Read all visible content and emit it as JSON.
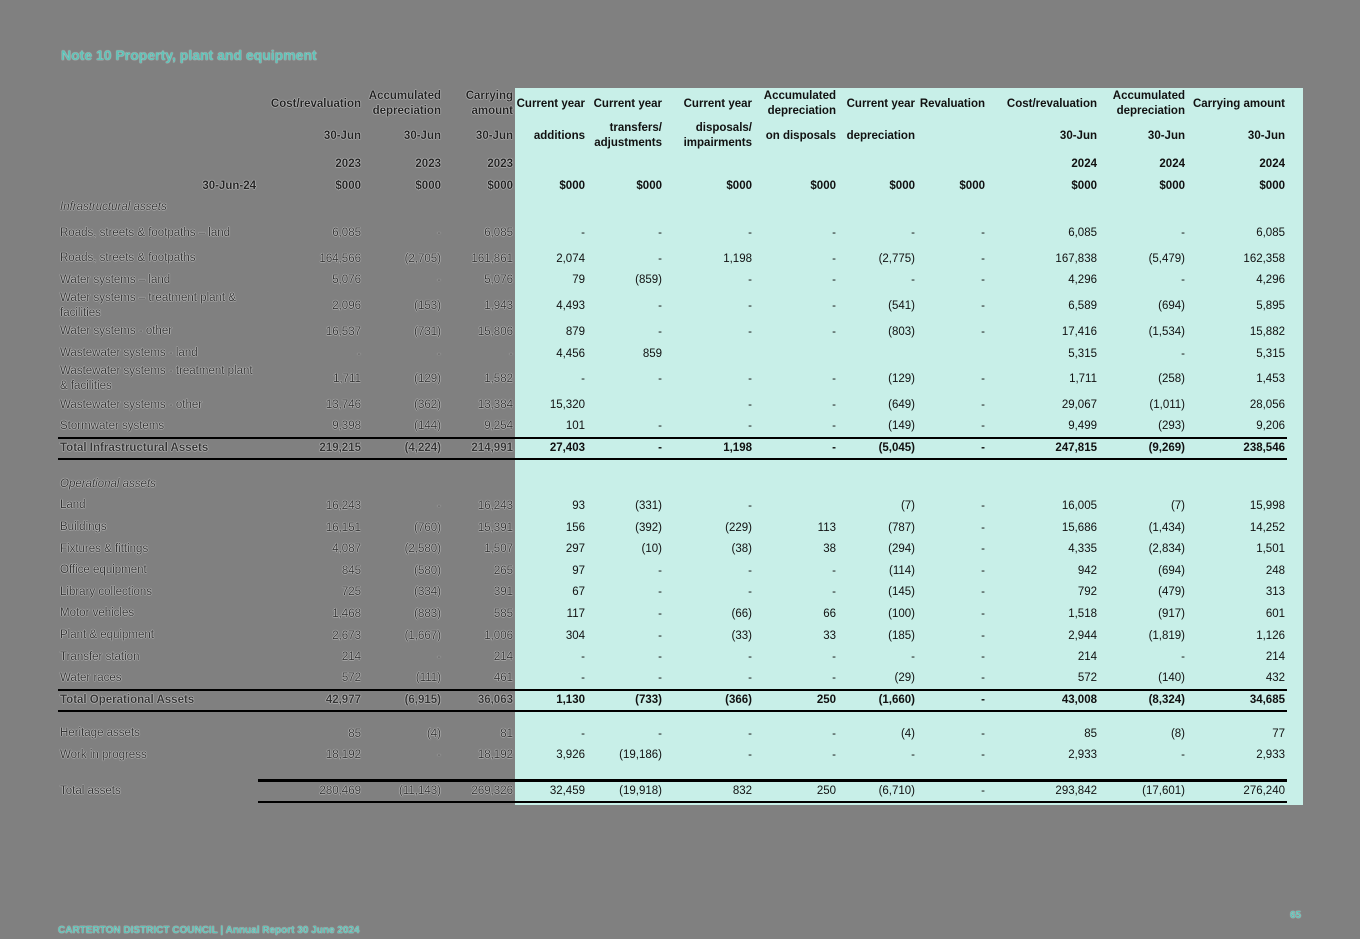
{
  "title": "Note 10 Property, plant and equipment",
  "header": {
    "row_label": "30-Jun-24",
    "columns": [
      {
        "line1": "Cost/revaluation",
        "line2": "30-Jun",
        "line3": "2023",
        "unit": "$000"
      },
      {
        "line1": "Accumulated depreciation",
        "line2": "30-Jun",
        "line3": "2023",
        "unit": "$000"
      },
      {
        "line1": "Carrying amount",
        "line2": "30-Jun",
        "line3": "2023",
        "unit": "$000"
      },
      {
        "line1": "Current year",
        "line2": "additions",
        "line3": "",
        "unit": "$000"
      },
      {
        "line1": "Current year",
        "line2": "transfers/ adjustments",
        "line3": "",
        "unit": "$000"
      },
      {
        "line1": "Current year",
        "line2": "disposals/ impairments",
        "line3": "",
        "unit": "$000"
      },
      {
        "line1": "Accumulated depreciation",
        "line2": "on disposals",
        "line3": "",
        "unit": "$000"
      },
      {
        "line1": "Current year",
        "line2": "depreciation",
        "line3": "",
        "unit": "$000"
      },
      {
        "line1": "Revaluation",
        "line2": "",
        "line3": "",
        "unit": "$000"
      },
      {
        "line1": "Cost/revaluation",
        "line2": "30-Jun",
        "line3": "2024",
        "unit": "$000"
      },
      {
        "line1": "Accumulated depreciation",
        "line2": "30-Jun",
        "line3": "2024",
        "unit": "$000"
      },
      {
        "line1": "Carrying amount",
        "line2": "30-Jun",
        "line3": "2024",
        "unit": "$000"
      }
    ]
  },
  "sections": {
    "infrastructural": {
      "heading": "Infrastructural assets",
      "rows": [
        {
          "label": "Roads, streets & footpaths – land",
          "v": [
            "6,085",
            "-",
            "6,085",
            "-",
            "-",
            "-",
            "-",
            "-",
            "-",
            "6,085",
            "-",
            "6,085"
          ]
        },
        {
          "label": "Roads, streets & footpaths",
          "v": [
            "164,566",
            "(2,705)",
            "161,861",
            "2,074",
            "-",
            "1,198",
            "-",
            "(2,775)",
            "-",
            "167,838",
            "(5,479)",
            "162,358"
          ]
        },
        {
          "label": "Water systems – land",
          "v": [
            "5,076",
            "-",
            "5,076",
            "79",
            "(859)",
            "-",
            "-",
            "-",
            "-",
            "4,296",
            "-",
            "4,296"
          ]
        },
        {
          "label": "Water systems – treatment plant & facilities",
          "v": [
            "2,096",
            "(153)",
            "1,943",
            "4,493",
            "-",
            "-",
            "-",
            "(541)",
            "-",
            "6,589",
            "(694)",
            "5,895"
          ]
        },
        {
          "label": "Water systems - other",
          "v": [
            "16,537",
            "(731)",
            "15,806",
            "879",
            "-",
            "-",
            "-",
            "(803)",
            "-",
            "17,416",
            "(1,534)",
            "15,882"
          ]
        },
        {
          "label": "Wastewater systems - land",
          "v": [
            "-",
            "-",
            "-",
            "4,456",
            "859",
            "",
            "",
            "",
            "",
            "5,315",
            "-",
            "5,315"
          ]
        },
        {
          "label": "Wastewater systems - treatment plant & facilities",
          "v": [
            "1,711",
            "(129)",
            "1,582",
            "-",
            "-",
            "-",
            "-",
            "(129)",
            "-",
            "1,711",
            "(258)",
            "1,453"
          ]
        },
        {
          "label": "Wastewater systems - other",
          "v": [
            "13,746",
            "(362)",
            "13,384",
            "15,320",
            "",
            "-",
            "-",
            "(649)",
            "-",
            "29,067",
            "(1,011)",
            "28,056"
          ]
        },
        {
          "label": "Stormwater systems",
          "v": [
            "9,398",
            "(144)",
            "9,254",
            "101",
            "-",
            "-",
            "-",
            "(149)",
            "-",
            "9,499",
            "(293)",
            "9,206"
          ]
        }
      ],
      "total": {
        "label": "Total Infrastructural Assets",
        "v": [
          "219,215",
          "(4,224)",
          "214,991",
          "27,403",
          "-",
          "1,198",
          "-",
          "(5,045)",
          "-",
          "247,815",
          "(9,269)",
          "238,546"
        ]
      }
    },
    "operational": {
      "heading": "Operational assets",
      "rows": [
        {
          "label": "Land",
          "v": [
            "16,243",
            "-",
            "16,243",
            "93",
            "(331)",
            "-",
            "",
            "(7)",
            "-",
            "16,005",
            "(7)",
            "15,998"
          ]
        },
        {
          "label": "Buildings",
          "v": [
            "16,151",
            "(760)",
            "15,391",
            "156",
            "(392)",
            "(229)",
            "113",
            "(787)",
            "-",
            "15,686",
            "(1,434)",
            "14,252"
          ]
        },
        {
          "label": "Fixtures & fittings",
          "v": [
            "4,087",
            "(2,580)",
            "1,507",
            "297",
            "(10)",
            "(38)",
            "38",
            "(294)",
            "-",
            "4,335",
            "(2,834)",
            "1,501"
          ]
        },
        {
          "label": "Office equipment",
          "v": [
            "845",
            "(580)",
            "265",
            "97",
            "-",
            "-",
            "-",
            "(114)",
            "-",
            "942",
            "(694)",
            "248"
          ]
        },
        {
          "label": "Library collections",
          "v": [
            "725",
            "(334)",
            "391",
            "67",
            "-",
            "-",
            "-",
            "(145)",
            "-",
            "792",
            "(479)",
            "313"
          ]
        },
        {
          "label": "Motor vehicles",
          "v": [
            "1,468",
            "(883)",
            "585",
            "117",
            "-",
            "(66)",
            "66",
            "(100)",
            "-",
            "1,518",
            "(917)",
            "601"
          ]
        },
        {
          "label": "Plant & equipment",
          "v": [
            "2,673",
            "(1,667)",
            "1,006",
            "304",
            "-",
            "(33)",
            "33",
            "(185)",
            "-",
            "2,944",
            "(1,819)",
            "1,126"
          ]
        },
        {
          "label": "Transfer station",
          "v": [
            "214",
            "-",
            "214",
            "-",
            "-",
            "-",
            "-",
            "-",
            "-",
            "214",
            "-",
            "214"
          ]
        },
        {
          "label": "Water races",
          "v": [
            "572",
            "(111)",
            "461",
            "-",
            "-",
            "-",
            "-",
            "(29)",
            "-",
            "572",
            "(140)",
            "432"
          ]
        }
      ],
      "total": {
        "label": "Total Operational Assets",
        "v": [
          "42,977",
          "(6,915)",
          "36,063",
          "1,130",
          "(733)",
          "(366)",
          "250",
          "(1,660)",
          "-",
          "43,008",
          "(8,324)",
          "34,685"
        ]
      }
    },
    "other": {
      "rows": [
        {
          "label": "Heritage assets",
          "v": [
            "85",
            "(4)",
            "81",
            "-",
            "-",
            "-",
            "-",
            "(4)",
            "-",
            "85",
            "(8)",
            "77"
          ]
        },
        {
          "label": "Work in progress",
          "v": [
            "18,192",
            "-",
            "18,192",
            "3,926",
            "(19,186)",
            "-",
            "-",
            "-",
            "-",
            "2,933",
            "-",
            "2,933"
          ]
        }
      ]
    },
    "grand_total": {
      "label": "Total assets",
      "v": [
        "280,469",
        "(11,143)",
        "269,326",
        "32,459",
        "(19,918)",
        "832",
        "250",
        "(6,710)",
        "-",
        "293,842",
        "(17,601)",
        "276,240"
      ]
    }
  },
  "footer": {
    "org": "CARTERTON DISTRICT COUNCIL | Annual Report 30 June 2024",
    "page": "65"
  },
  "colors": {
    "accent": "#5fc3b8",
    "table_highlight": "#c8efe8",
    "page_bg": "#808080"
  }
}
